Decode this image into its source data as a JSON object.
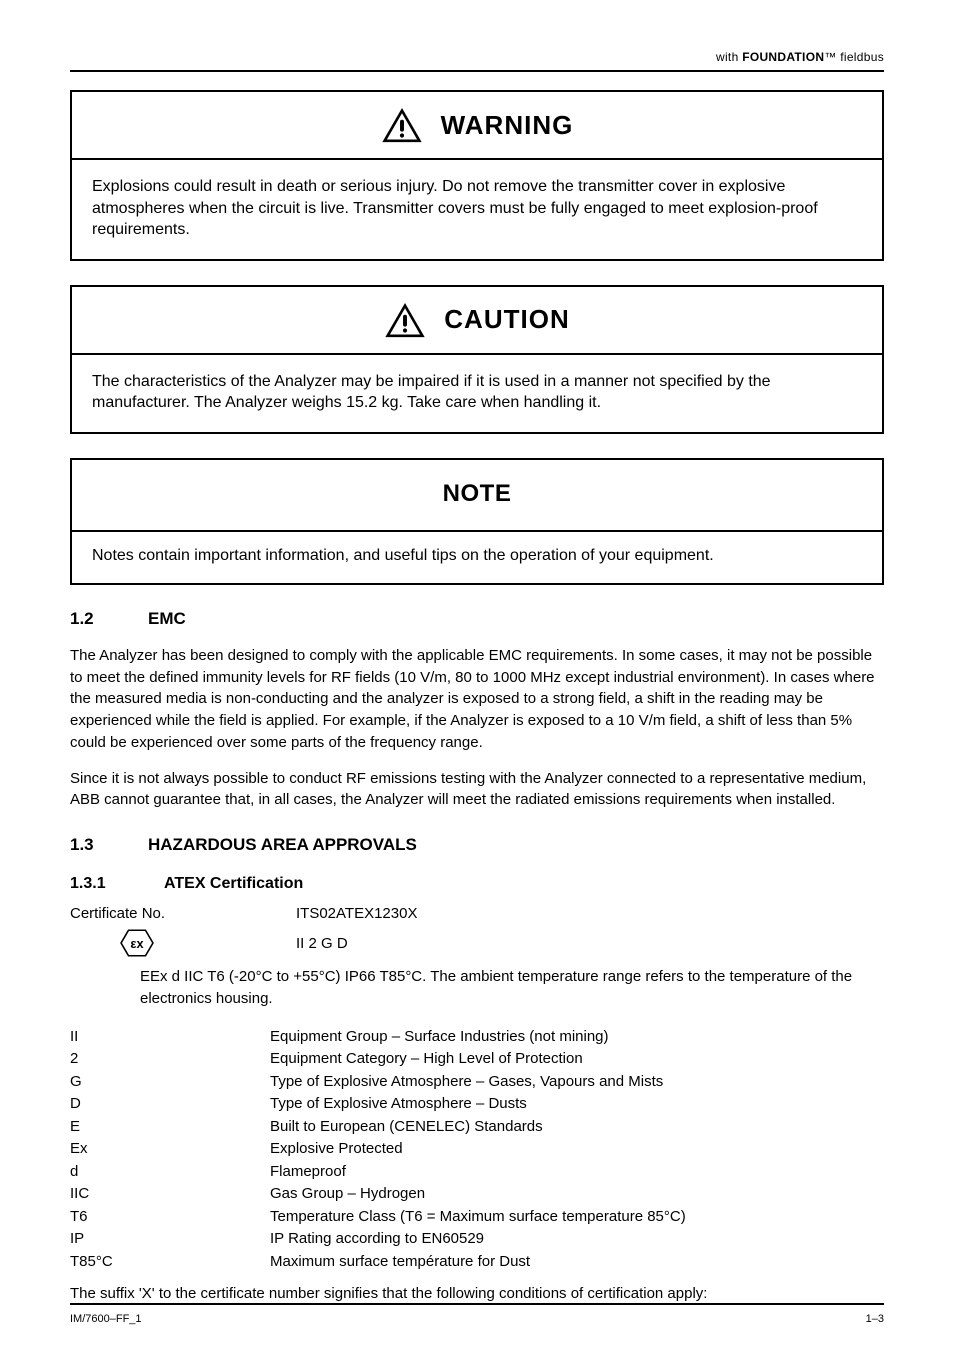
{
  "header": {
    "prefix": "with ",
    "bold_part": "FOUNDATION",
    "suffix": "™ fieldbus"
  },
  "warning": {
    "label": "WARNING",
    "body": "Explosions could result in death or serious injury. Do not remove the transmitter cover in explosive atmospheres when the circuit is live. Transmitter covers must be fully engaged to meet explosion-proof requirements."
  },
  "caution": {
    "label": "CAUTION",
    "body": "The characteristics of the Analyzer may be impaired if it is used in a manner not specified by the manufacturer. The Analyzer weighs 15.2 kg. Take care when handling it."
  },
  "note": {
    "label": "NOTE",
    "body": "Notes contain important information, and useful tips on the operation of your equipment."
  },
  "section12": {
    "num": "1.2",
    "title": "EMC",
    "p1": "The Analyzer has been designed to comply with the applicable EMC requirements. In some cases, it may not be possible to meet the defined immunity levels for RF fields (10 V/m, 80 to 1000 MHz except industrial environment). In cases where the measured media is non-conducting and the analyzer is exposed to a strong field, a shift in the reading may be experienced while the field is applied. For example, if the Analyzer is exposed to a 10 V/m field, a shift of less than 5% could be experienced over some parts of the frequency range.",
    "p2": "Since it is not always possible to conduct RF emissions testing with the Analyzer connected to a representative medium, ABB cannot guarantee that, in all cases, the Analyzer will meet the radiated emissions requirements when installed."
  },
  "section13": {
    "num": "1.3",
    "title": "HAZARDOUS AREA APPROVALS",
    "sub131_num": "1.3.1",
    "sub131_title": "ATEX Certification",
    "cert_no_label": "Certificate No. ",
    "cert_no": "ITS02ATEX1230X",
    "marking": "II 2 G D",
    "ex_line": "EEx d IIC T6 (-20°C to +55°C) IP66 T85°C. ",
    "ex_note": "The ambient temperature range refers to the temperature of the electronics housing.",
    "rows": [
      {
        "c1": "II",
        "c2": "Equipment Group – Surface Industries (not mining)"
      },
      {
        "c1": "2",
        "c2": "Equipment Category – High Level of Protection"
      },
      {
        "c1": "G",
        "c2": "Type of Explosive Atmosphere – Gases, Vapours and Mists"
      },
      {
        "c1": "D",
        "c2": "Type of Explosive Atmosphere – Dusts"
      },
      {
        "c1": "E",
        "c2": "Built to European (CENELEC) Standards"
      },
      {
        "c1": "Ex",
        "c2": "Explosive Protected"
      },
      {
        "c1": "d",
        "c2": "Flameproof"
      },
      {
        "c1": "IIC",
        "c2": "Gas Group – Hydrogen"
      },
      {
        "c1": "T6",
        "c2": "Temperature Class (T6 = Maximum surface temperature 85°C)"
      },
      {
        "c1": "IP",
        "c2": "IP Rating according to EN60529"
      },
      {
        "c1": "T85°C",
        "c2": "Maximum surface température for Dust"
      }
    ],
    "x_note": "The suffix 'X' to the certificate number signifies that the following conditions of certification apply:"
  },
  "footer": {
    "left": "IM/7600–FF_1",
    "right": "1–3"
  }
}
